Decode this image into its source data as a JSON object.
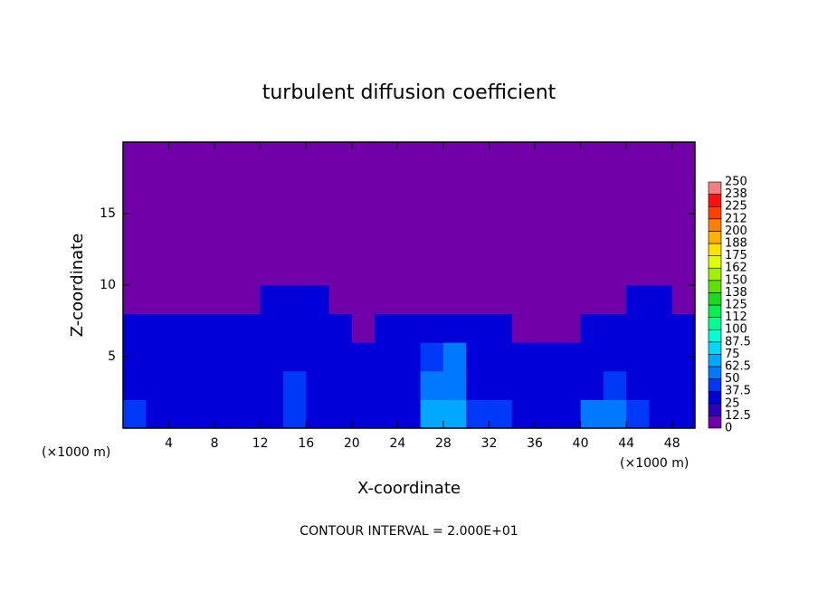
{
  "chart_data": {
    "type": "heatmap",
    "title": "turbulent diffusion coefficient",
    "x_label": "X-coordinate",
    "y_label": "Z-coordinate",
    "x_unit": "(×1000 m)",
    "annotation": "CONTOUR INTERVAL = 2.000E+01",
    "xlim": [
      0,
      50
    ],
    "ylim": [
      0,
      20
    ],
    "xticks": [
      4,
      8,
      12,
      16,
      20,
      24,
      28,
      32,
      36,
      40,
      44,
      48
    ],
    "yticks": [
      5,
      10,
      15
    ],
    "x": [
      1,
      3,
      5,
      7,
      9,
      11,
      13,
      15,
      17,
      19,
      21,
      23,
      25,
      27,
      29,
      31,
      33,
      35,
      37,
      39,
      41,
      43,
      45,
      47,
      49
    ],
    "y": [
      1,
      3,
      5,
      7,
      9,
      11,
      13,
      15,
      17,
      19
    ],
    "values": [
      [
        40,
        35,
        30,
        35,
        30,
        35,
        35,
        40,
        35,
        35,
        35,
        30,
        35,
        65,
        70,
        40,
        40,
        35,
        35,
        30,
        55,
        60,
        40,
        30,
        30
      ],
      [
        35,
        30,
        35,
        35,
        35,
        35,
        30,
        40,
        35,
        35,
        35,
        35,
        35,
        50,
        60,
        35,
        35,
        35,
        35,
        30,
        35,
        45,
        35,
        35,
        35
      ],
      [
        30,
        35,
        35,
        35,
        35,
        30,
        30,
        35,
        35,
        30,
        30,
        30,
        30,
        40,
        50,
        30,
        30,
        30,
        30,
        30,
        30,
        30,
        35,
        30,
        30
      ],
      [
        30,
        30,
        30,
        30,
        28,
        30,
        30,
        30,
        30,
        30,
        0,
        30,
        28,
        30,
        30,
        30,
        30,
        0,
        0,
        0,
        30,
        35,
        30,
        30,
        30
      ],
      [
        0,
        0,
        0,
        0,
        0,
        0,
        25,
        28,
        25,
        0,
        0,
        0,
        0,
        0,
        0,
        0,
        0,
        0,
        0,
        0,
        0,
        0,
        25,
        25,
        0
      ],
      [
        0,
        0,
        0,
        0,
        0,
        0,
        0,
        0,
        0,
        0,
        0,
        0,
        0,
        0,
        0,
        0,
        0,
        0,
        0,
        0,
        0,
        0,
        0,
        0,
        0
      ],
      [
        0,
        0,
        0,
        0,
        0,
        0,
        0,
        0,
        0,
        0,
        0,
        0,
        0,
        0,
        0,
        0,
        0,
        0,
        0,
        0,
        0,
        0,
        0,
        0,
        0
      ],
      [
        0,
        0,
        0,
        0,
        0,
        0,
        0,
        0,
        0,
        0,
        0,
        0,
        0,
        0,
        0,
        0,
        0,
        0,
        0,
        0,
        0,
        0,
        0,
        0,
        0
      ],
      [
        0,
        0,
        0,
        0,
        0,
        0,
        0,
        0,
        0,
        0,
        0,
        0,
        0,
        0,
        0,
        0,
        0,
        0,
        0,
        0,
        0,
        0,
        0,
        0,
        0
      ],
      [
        0,
        0,
        0,
        0,
        0,
        0,
        0,
        0,
        0,
        0,
        0,
        0,
        0,
        0,
        0,
        0,
        0,
        0,
        0,
        0,
        0,
        0,
        0,
        0,
        0
      ]
    ],
    "levels": [
      0,
      12.5,
      25,
      37.5,
      50,
      62.5,
      75,
      87.5,
      100,
      112,
      125,
      138,
      150,
      162,
      175,
      188,
      200,
      212,
      225,
      238,
      250
    ],
    "colors": [
      "#7000a8",
      "#2a00b8",
      "#0000d8",
      "#0038f8",
      "#0078ff",
      "#00a8ff",
      "#00d8ff",
      "#00ffd0",
      "#00ff90",
      "#00f050",
      "#20d820",
      "#60e000",
      "#a0f000",
      "#e0ff00",
      "#ffe000",
      "#ffb000",
      "#ff8000",
      "#ff4000",
      "#ff1010",
      "#f08080"
    ]
  }
}
